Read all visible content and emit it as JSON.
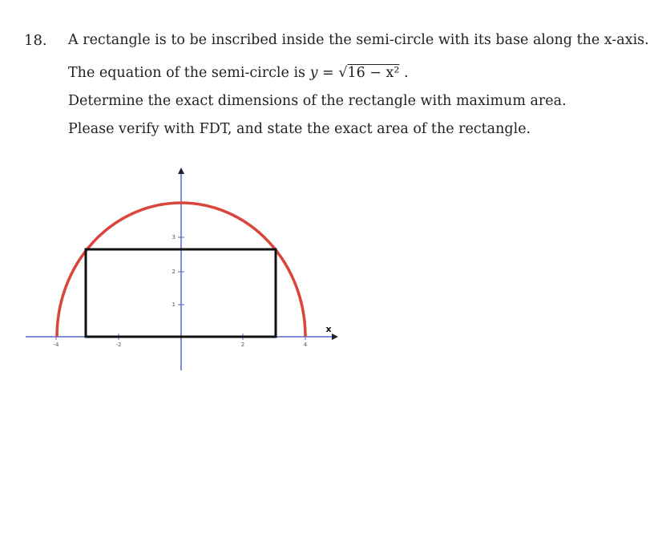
{
  "question": {
    "number": "18.",
    "lines": [
      "A rectangle is to be inscribed inside the semi-circle with its base along the x-axis.",
      "Determine the exact dimensions of the rectangle with maximum area.",
      "Please verify with FDT, and state the exact area of the rectangle."
    ],
    "equation": {
      "prefix": "The equation of the semi-circle is",
      "lhs": "y =",
      "root": "√",
      "radicand": "16 − x²",
      "suffix": "."
    }
  },
  "figure": {
    "x_tick_labels": [
      "-4",
      "-2",
      "2",
      "4"
    ],
    "y_tick_labels": [
      "1",
      "2",
      "3"
    ],
    "x_label": "x"
  }
}
